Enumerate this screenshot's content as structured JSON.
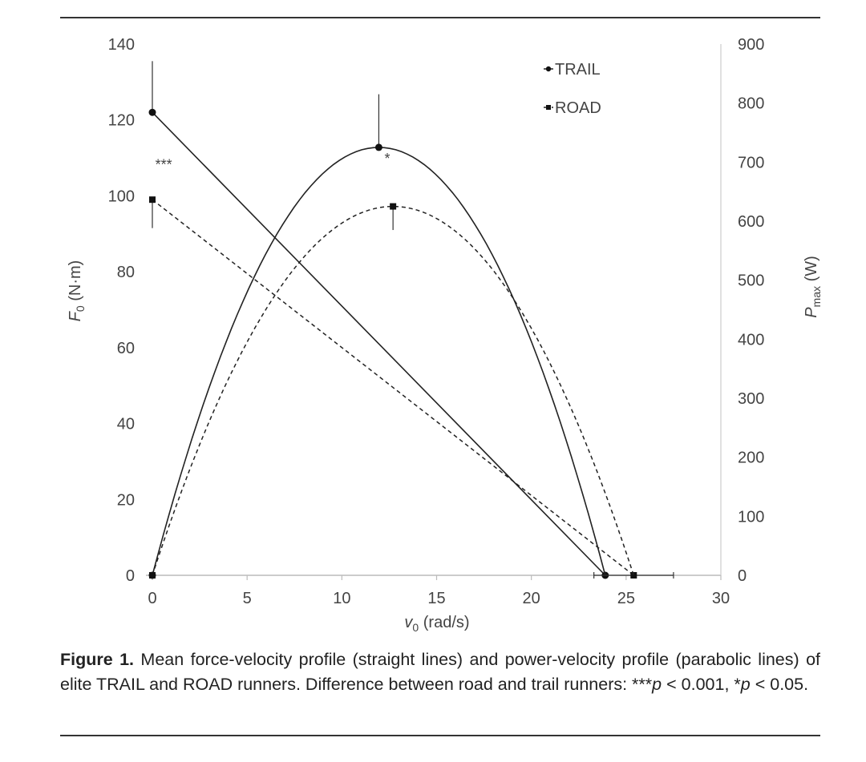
{
  "chart_data": {
    "type": "line",
    "xlabel_var": "v",
    "xlabel_sub": "0",
    "xlabel_unit": " (rad/s)",
    "ylabel_var": "F",
    "ylabel_sub": "0",
    "ylabel_unit": " (N·m)",
    "y2label_var": "P",
    "y2label_sub": "max",
    "y2label_unit": " (W)",
    "xlim": [
      0,
      30
    ],
    "ylim": [
      0,
      140
    ],
    "y2lim": [
      0,
      900
    ],
    "xticks": [
      "0",
      "5",
      "10",
      "15",
      "20",
      "25",
      "30"
    ],
    "yticks": [
      "0",
      "20",
      "40",
      "60",
      "80",
      "100",
      "120",
      "140"
    ],
    "y2ticks": [
      "0",
      "100",
      "200",
      "300",
      "400",
      "500",
      "600",
      "700",
      "800",
      "900"
    ],
    "legend": [
      {
        "name": "TRAIL",
        "style": "solid"
      },
      {
        "name": "ROAD",
        "style": "dashed"
      }
    ],
    "series": [
      {
        "name": "TRAIL force-velocity",
        "group": "TRAIL",
        "axis": "left",
        "kind": "linear",
        "style": "solid",
        "points": [
          {
            "x": 0,
            "y": 122,
            "err_up": 13.5
          },
          {
            "x": 23.9,
            "y": 0
          }
        ]
      },
      {
        "name": "ROAD force-velocity",
        "group": "ROAD",
        "axis": "left",
        "kind": "linear",
        "style": "dashed",
        "points": [
          {
            "x": 0,
            "y": 99,
            "err_down": 7.5
          },
          {
            "x": 25.4,
            "y": 0,
            "err_x": 2.1
          }
        ]
      },
      {
        "name": "TRAIL power-velocity",
        "group": "TRAIL",
        "axis": "right",
        "kind": "parabola",
        "style": "solid",
        "vmax": 23.9,
        "peak": {
          "x": 11.95,
          "y": 725,
          "err_up": 90
        }
      },
      {
        "name": "ROAD power-velocity",
        "group": "ROAD",
        "axis": "right",
        "kind": "parabola",
        "style": "dashed",
        "vmax": 25.4,
        "peak": {
          "x": 12.7,
          "y": 625,
          "err_down": 40
        }
      }
    ],
    "annotations": [
      {
        "text": "***",
        "x": 0.6,
        "y": 107,
        "axis": "left"
      },
      {
        "text": "*",
        "x": 12.4,
        "y": 108.5,
        "axis": "left"
      }
    ]
  },
  "caption": {
    "label": "Figure 1.",
    "text": " Mean force-velocity profile (straight lines) and power-velocity profile (parabolic lines) of elite TRAIL and ROAD runners. Difference between road and trail runners: ***",
    "p1_var": "p",
    "p1_rest": " < 0.001, *",
    "p2_var": "p",
    "p2_rest": " < 0.05."
  }
}
